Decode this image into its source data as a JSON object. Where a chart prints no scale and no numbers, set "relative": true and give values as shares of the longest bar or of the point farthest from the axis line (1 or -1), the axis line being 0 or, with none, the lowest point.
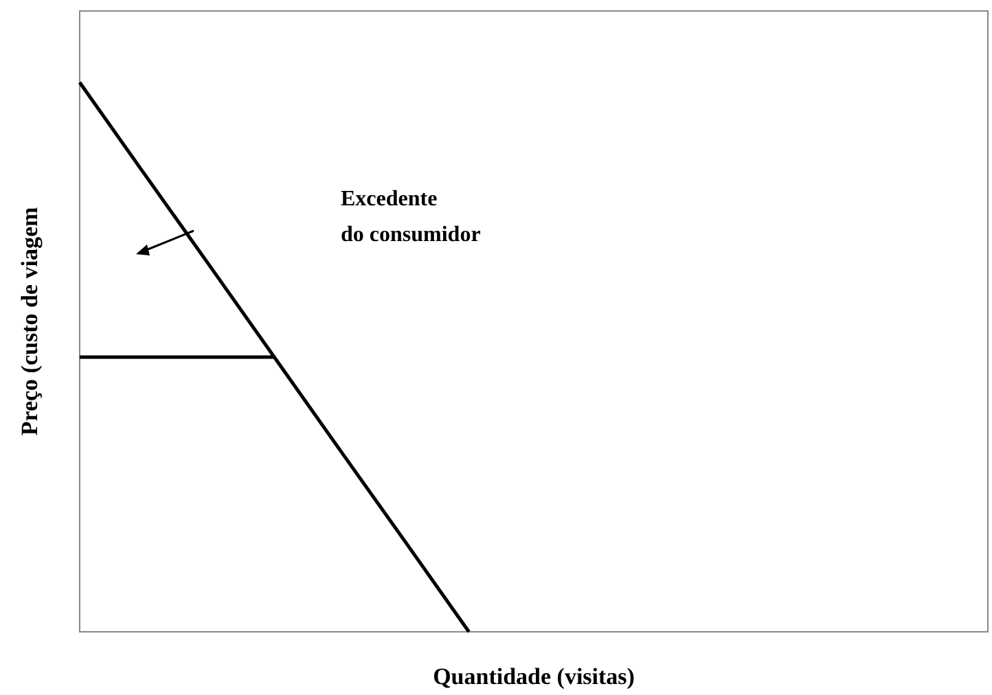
{
  "chart_data": {
    "type": "line",
    "relative": true,
    "xlabel": "Quantidade (visitas)",
    "ylabel": "Preço (custo de viagem",
    "annotations": [
      "Excedente\ndo consumidor"
    ],
    "categories": [
      null,
      null,
      null,
      null,
      null,
      null,
      null,
      null,
      null,
      null,
      null,
      null,
      null,
      null,
      null
    ],
    "series": [
      {
        "color": "#000000",
        "values": [
          1,
          0.833,
          0.667,
          0.5,
          0.333,
          0.167,
          0,
          null,
          null,
          null,
          null,
          null,
          null,
          null,
          null
        ]
      },
      {
        "color": "#000000",
        "values": [
          0.5,
          0.5,
          0.5,
          0.5,
          null,
          null,
          null,
          null,
          null,
          null,
          null,
          null,
          null,
          null,
          null
        ]
      }
    ],
    "grid": false,
    "marker": "none",
    "line_style": "solid"
  }
}
